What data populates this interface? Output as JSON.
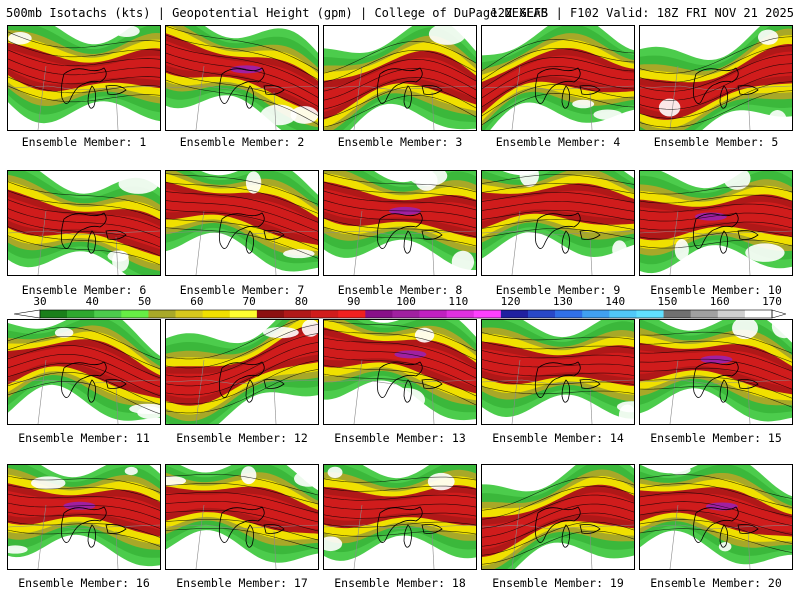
{
  "header": {
    "left": "500mb Isotachs (kts) | Geopotential Height (gpm) | College of DuPage NEXLAB",
    "right": "12Z GEFS | F102 Valid: 18Z FRI NOV 21 2025"
  },
  "colorbar": {
    "labels": [
      "30",
      "40",
      "50",
      "60",
      "70",
      "80",
      "90",
      "100",
      "110",
      "120",
      "130",
      "140",
      "150",
      "160",
      "170"
    ],
    "colors": [
      "#1a7f1a",
      "#2ea82e",
      "#4ccc4c",
      "#66ee44",
      "#a8a828",
      "#d6c81e",
      "#f0e000",
      "#ffff30",
      "#8c1010",
      "#b01818",
      "#d01c1c",
      "#f02020",
      "#881088",
      "#a020a0",
      "#c020c0",
      "#e030e0",
      "#ff40ff",
      "#2020a0",
      "#2848c8",
      "#3070e8",
      "#40a0f0",
      "#50c8f8",
      "#60e0ff",
      "#707070",
      "#a0a0a0",
      "#d0d0d0",
      "#ffffff"
    ]
  },
  "members": [
    {
      "label": "Ensemble Member: 1"
    },
    {
      "label": "Ensemble Member: 2"
    },
    {
      "label": "Ensemble Member: 3"
    },
    {
      "label": "Ensemble Member: 4"
    },
    {
      "label": "Ensemble Member: 5"
    },
    {
      "label": "Ensemble Member: 6"
    },
    {
      "label": "Ensemble Member: 7"
    },
    {
      "label": "Ensemble Member: 8"
    },
    {
      "label": "Ensemble Member: 9"
    },
    {
      "label": "Ensemble Member: 10"
    },
    {
      "label": "Ensemble Member: 11"
    },
    {
      "label": "Ensemble Member: 12"
    },
    {
      "label": "Ensemble Member: 13"
    },
    {
      "label": "Ensemble Member: 14"
    },
    {
      "label": "Ensemble Member: 15"
    },
    {
      "label": "Ensemble Member: 16"
    },
    {
      "label": "Ensemble Member: 17"
    },
    {
      "label": "Ensemble Member: 18"
    },
    {
      "label": "Ensemble Member: 19"
    },
    {
      "label": "Ensemble Member: 20"
    }
  ]
}
